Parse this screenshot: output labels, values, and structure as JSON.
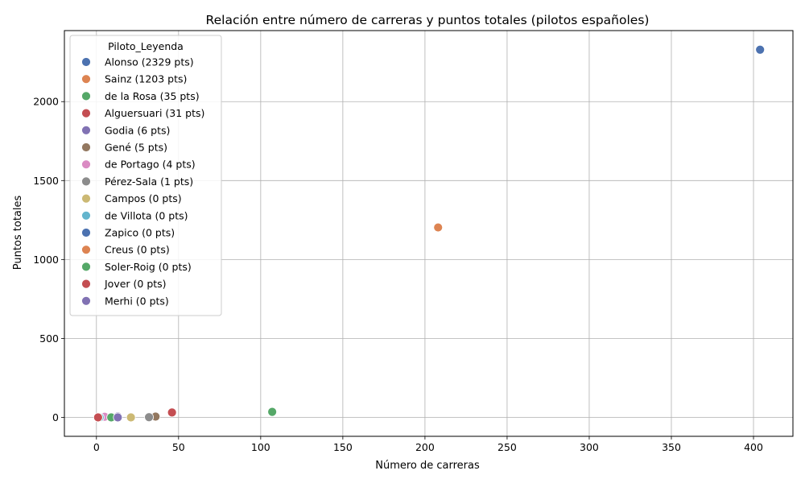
{
  "chart_data": {
    "type": "scatter",
    "title": "Relación entre número de carreras y puntos totales (pilotos españoles)",
    "xlabel": "Número de carreras",
    "ylabel": "Puntos totales",
    "xlim": [
      -19.5,
      424
    ],
    "ylim": [
      -120,
      2450
    ],
    "xticks": [
      0,
      50,
      100,
      150,
      200,
      250,
      300,
      350,
      400
    ],
    "yticks": [
      0,
      500,
      1000,
      1500,
      2000
    ],
    "grid": true,
    "legend": {
      "title": "Piloto_Leyenda",
      "placement": "top-left"
    },
    "series": [
      {
        "name": "Alonso (2329 pts)",
        "color": "#4c72b0",
        "x": 404,
        "y": 2329
      },
      {
        "name": "Sainz (1203 pts)",
        "color": "#dd8452",
        "x": 208,
        "y": 1203
      },
      {
        "name": "de la Rosa (35 pts)",
        "color": "#55a868",
        "x": 107,
        "y": 35
      },
      {
        "name": "Alguersuari (31 pts)",
        "color": "#c44e52",
        "x": 46,
        "y": 31
      },
      {
        "name": "Godia (6 pts)",
        "color": "#8172b3",
        "x": 13,
        "y": 6
      },
      {
        "name": "Gené (5 pts)",
        "color": "#937860",
        "x": 36,
        "y": 5
      },
      {
        "name": "de Portago (4 pts)",
        "color": "#da8bc3",
        "x": 5,
        "y": 4
      },
      {
        "name": "Pérez-Sala (1 pts)",
        "color": "#8c8c8c",
        "x": 32,
        "y": 1
      },
      {
        "name": "Campos (0 pts)",
        "color": "#ccb974",
        "x": 21,
        "y": 0
      },
      {
        "name": "de Villota (0 pts)",
        "color": "#64b5cd",
        "x": 2,
        "y": 0
      },
      {
        "name": "Zapico (0 pts)",
        "color": "#4c72b0",
        "x": 1,
        "y": 0
      },
      {
        "name": "Creus (0 pts)",
        "color": "#dd8452",
        "x": 1,
        "y": 0
      },
      {
        "name": "Soler-Roig (0 pts)",
        "color": "#55a868",
        "x": 9,
        "y": 0
      },
      {
        "name": "Jover (0 pts)",
        "color": "#c44e52",
        "x": 1,
        "y": 0
      },
      {
        "name": "Merhi (0 pts)",
        "color": "#8172b3",
        "x": 13,
        "y": 0
      }
    ]
  }
}
